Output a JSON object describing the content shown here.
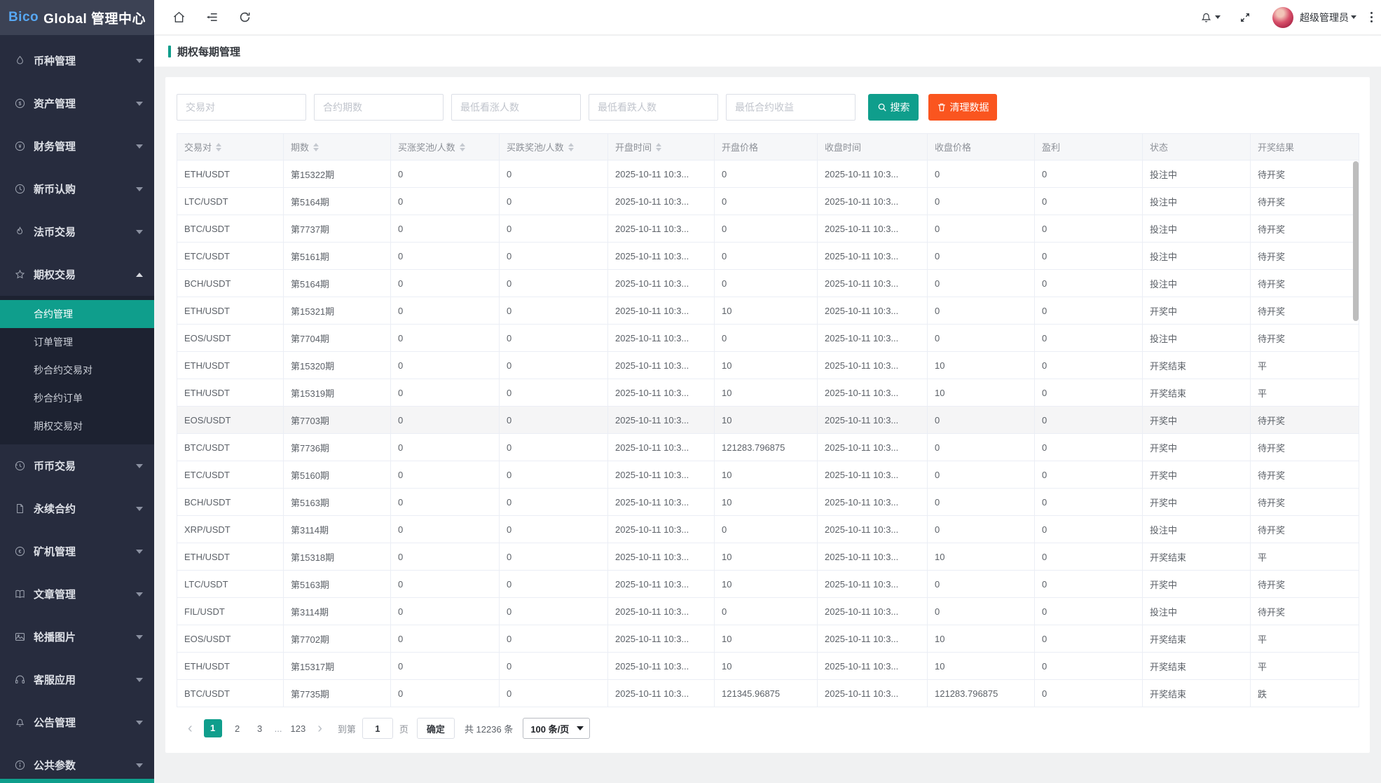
{
  "colors": {
    "accent": "#0f9e8c",
    "danger": "#fa551f",
    "brand_blue": "#57a7f2"
  },
  "app": {
    "brand_blue_text": "Bico",
    "brand_rest_text": "Global 管理中心"
  },
  "topbar": {
    "user_name": "超级管理员"
  },
  "page": {
    "title": "期权每期管理"
  },
  "sidebar": {
    "items": [
      {
        "key": "coin",
        "label": "币种管理",
        "icon": "drop-icon"
      },
      {
        "key": "asset",
        "label": "资产管理",
        "icon": "dollar-circle-icon"
      },
      {
        "key": "finance",
        "label": "财务管理",
        "icon": "yen-circle-icon"
      },
      {
        "key": "new-coin",
        "label": "新币认购",
        "icon": "clock-icon"
      },
      {
        "key": "fiat",
        "label": "法币交易",
        "icon": "flame-icon"
      },
      {
        "key": "options",
        "label": "期权交易",
        "icon": "star-icon",
        "expanded": true,
        "children": [
          {
            "key": "contracts",
            "label": "合约管理",
            "active": true
          },
          {
            "key": "orders",
            "label": "订单管理"
          },
          {
            "key": "second-pairs",
            "label": "秒合约交易对"
          },
          {
            "key": "second-orders",
            "label": "秒合约订单"
          },
          {
            "key": "option-pairs",
            "label": "期权交易对"
          }
        ]
      },
      {
        "key": "spot",
        "label": "币币交易",
        "icon": "history-icon"
      },
      {
        "key": "perpetual",
        "label": "永续合约",
        "icon": "file-icon"
      },
      {
        "key": "miner",
        "label": "矿机管理",
        "icon": "euro-circle-icon"
      },
      {
        "key": "articles",
        "label": "文章管理",
        "icon": "book-icon"
      },
      {
        "key": "banners",
        "label": "轮播图片",
        "icon": "image-icon"
      },
      {
        "key": "support",
        "label": "客服应用",
        "icon": "headset-icon"
      },
      {
        "key": "notices",
        "label": "公告管理",
        "icon": "bell-icon"
      },
      {
        "key": "params",
        "label": "公共参数",
        "icon": "info-circle-icon"
      }
    ]
  },
  "filters": {
    "inputs": [
      {
        "key": "pair",
        "placeholder": "交易对"
      },
      {
        "key": "period",
        "placeholder": "合约期数"
      },
      {
        "key": "min-up",
        "placeholder": "最低看涨人数"
      },
      {
        "key": "min-down",
        "placeholder": "最低看跌人数"
      },
      {
        "key": "min-profit",
        "placeholder": "最低合约收益"
      }
    ],
    "search_label": "搜索",
    "clear_label": "清理数据"
  },
  "table": {
    "columns": [
      {
        "key": "pair",
        "label": "交易对",
        "sortable": true
      },
      {
        "key": "period",
        "label": "期数",
        "sortable": true
      },
      {
        "key": "up_pool",
        "label": "买涨奖池/人数",
        "sortable": true
      },
      {
        "key": "down_pool",
        "label": "买跌奖池/人数",
        "sortable": true
      },
      {
        "key": "open_time",
        "label": "开盘时间",
        "sortable": true
      },
      {
        "key": "open_price",
        "label": "开盘价格",
        "sortable": false
      },
      {
        "key": "close_time",
        "label": "收盘时间",
        "sortable": false
      },
      {
        "key": "close_price",
        "label": "收盘价格",
        "sortable": false
      },
      {
        "key": "profit",
        "label": "盈利",
        "sortable": false
      },
      {
        "key": "status",
        "label": "状态",
        "sortable": false
      },
      {
        "key": "result",
        "label": "开奖结果",
        "sortable": false
      }
    ],
    "hovered_row_index": 9,
    "rows": [
      {
        "pair": "ETH/USDT",
        "period": "第15322期",
        "up_pool": "0",
        "down_pool": "0",
        "open_time": "2025-10-11 10:3...",
        "open_price": "0",
        "close_time": "2025-10-11 10:3...",
        "close_price": "0",
        "profit": "0",
        "status": "投注中",
        "result": "待开奖"
      },
      {
        "pair": "LTC/USDT",
        "period": "第5164期",
        "up_pool": "0",
        "down_pool": "0",
        "open_time": "2025-10-11 10:3...",
        "open_price": "0",
        "close_time": "2025-10-11 10:3...",
        "close_price": "0",
        "profit": "0",
        "status": "投注中",
        "result": "待开奖"
      },
      {
        "pair": "BTC/USDT",
        "period": "第7737期",
        "up_pool": "0",
        "down_pool": "0",
        "open_time": "2025-10-11 10:3...",
        "open_price": "0",
        "close_time": "2025-10-11 10:3...",
        "close_price": "0",
        "profit": "0",
        "status": "投注中",
        "result": "待开奖"
      },
      {
        "pair": "ETC/USDT",
        "period": "第5161期",
        "up_pool": "0",
        "down_pool": "0",
        "open_time": "2025-10-11 10:3...",
        "open_price": "0",
        "close_time": "2025-10-11 10:3...",
        "close_price": "0",
        "profit": "0",
        "status": "投注中",
        "result": "待开奖"
      },
      {
        "pair": "BCH/USDT",
        "period": "第5164期",
        "up_pool": "0",
        "down_pool": "0",
        "open_time": "2025-10-11 10:3...",
        "open_price": "0",
        "close_time": "2025-10-11 10:3...",
        "close_price": "0",
        "profit": "0",
        "status": "投注中",
        "result": "待开奖"
      },
      {
        "pair": "ETH/USDT",
        "period": "第15321期",
        "up_pool": "0",
        "down_pool": "0",
        "open_time": "2025-10-11 10:3...",
        "open_price": "10",
        "close_time": "2025-10-11 10:3...",
        "close_price": "0",
        "profit": "0",
        "status": "开奖中",
        "result": "待开奖"
      },
      {
        "pair": "EOS/USDT",
        "period": "第7704期",
        "up_pool": "0",
        "down_pool": "0",
        "open_time": "2025-10-11 10:3...",
        "open_price": "0",
        "close_time": "2025-10-11 10:3...",
        "close_price": "0",
        "profit": "0",
        "status": "投注中",
        "result": "待开奖"
      },
      {
        "pair": "ETH/USDT",
        "period": "第15320期",
        "up_pool": "0",
        "down_pool": "0",
        "open_time": "2025-10-11 10:3...",
        "open_price": "10",
        "close_time": "2025-10-11 10:3...",
        "close_price": "10",
        "profit": "0",
        "status": "开奖结束",
        "result": "平"
      },
      {
        "pair": "ETH/USDT",
        "period": "第15319期",
        "up_pool": "0",
        "down_pool": "0",
        "open_time": "2025-10-11 10:3...",
        "open_price": "10",
        "close_time": "2025-10-11 10:3...",
        "close_price": "10",
        "profit": "0",
        "status": "开奖结束",
        "result": "平"
      },
      {
        "pair": "EOS/USDT",
        "period": "第7703期",
        "up_pool": "0",
        "down_pool": "0",
        "open_time": "2025-10-11 10:3...",
        "open_price": "10",
        "close_time": "2025-10-11 10:3...",
        "close_price": "0",
        "profit": "0",
        "status": "开奖中",
        "result": "待开奖"
      },
      {
        "pair": "BTC/USDT",
        "period": "第7736期",
        "up_pool": "0",
        "down_pool": "0",
        "open_time": "2025-10-11 10:3...",
        "open_price": "121283.796875",
        "close_time": "2025-10-11 10:3...",
        "close_price": "0",
        "profit": "0",
        "status": "开奖中",
        "result": "待开奖"
      },
      {
        "pair": "ETC/USDT",
        "period": "第5160期",
        "up_pool": "0",
        "down_pool": "0",
        "open_time": "2025-10-11 10:3...",
        "open_price": "10",
        "close_time": "2025-10-11 10:3...",
        "close_price": "0",
        "profit": "0",
        "status": "开奖中",
        "result": "待开奖"
      },
      {
        "pair": "BCH/USDT",
        "period": "第5163期",
        "up_pool": "0",
        "down_pool": "0",
        "open_time": "2025-10-11 10:3...",
        "open_price": "10",
        "close_time": "2025-10-11 10:3...",
        "close_price": "0",
        "profit": "0",
        "status": "开奖中",
        "result": "待开奖"
      },
      {
        "pair": "XRP/USDT",
        "period": "第3114期",
        "up_pool": "0",
        "down_pool": "0",
        "open_time": "2025-10-11 10:3...",
        "open_price": "0",
        "close_time": "2025-10-11 10:3...",
        "close_price": "0",
        "profit": "0",
        "status": "投注中",
        "result": "待开奖"
      },
      {
        "pair": "ETH/USDT",
        "period": "第15318期",
        "up_pool": "0",
        "down_pool": "0",
        "open_time": "2025-10-11 10:3...",
        "open_price": "10",
        "close_time": "2025-10-11 10:3...",
        "close_price": "10",
        "profit": "0",
        "status": "开奖结束",
        "result": "平"
      },
      {
        "pair": "LTC/USDT",
        "period": "第5163期",
        "up_pool": "0",
        "down_pool": "0",
        "open_time": "2025-10-11 10:3...",
        "open_price": "10",
        "close_time": "2025-10-11 10:3...",
        "close_price": "0",
        "profit": "0",
        "status": "开奖中",
        "result": "待开奖"
      },
      {
        "pair": "FIL/USDT",
        "period": "第3114期",
        "up_pool": "0",
        "down_pool": "0",
        "open_time": "2025-10-11 10:3...",
        "open_price": "0",
        "close_time": "2025-10-11 10:3...",
        "close_price": "0",
        "profit": "0",
        "status": "投注中",
        "result": "待开奖"
      },
      {
        "pair": "EOS/USDT",
        "period": "第7702期",
        "up_pool": "0",
        "down_pool": "0",
        "open_time": "2025-10-11 10:3...",
        "open_price": "10",
        "close_time": "2025-10-11 10:3...",
        "close_price": "10",
        "profit": "0",
        "status": "开奖结束",
        "result": "平"
      },
      {
        "pair": "ETH/USDT",
        "period": "第15317期",
        "up_pool": "0",
        "down_pool": "0",
        "open_time": "2025-10-11 10:3...",
        "open_price": "10",
        "close_time": "2025-10-11 10:3...",
        "close_price": "10",
        "profit": "0",
        "status": "开奖结束",
        "result": "平"
      },
      {
        "pair": "BTC/USDT",
        "period": "第7735期",
        "up_pool": "0",
        "down_pool": "0",
        "open_time": "2025-10-11 10:3...",
        "open_price": "121345.96875",
        "close_time": "2025-10-11 10:3...",
        "close_price": "121283.796875",
        "profit": "0",
        "status": "开奖结束",
        "result": "跌"
      }
    ]
  },
  "pagination": {
    "pages": [
      "1",
      "2",
      "3",
      "...",
      "123"
    ],
    "active_page": "1",
    "goto_label": "到第",
    "goto_value": "1",
    "unit_label": "页",
    "confirm_label": "确定",
    "total_label": "共 12236 条",
    "page_size_label": "100 条/页"
  }
}
